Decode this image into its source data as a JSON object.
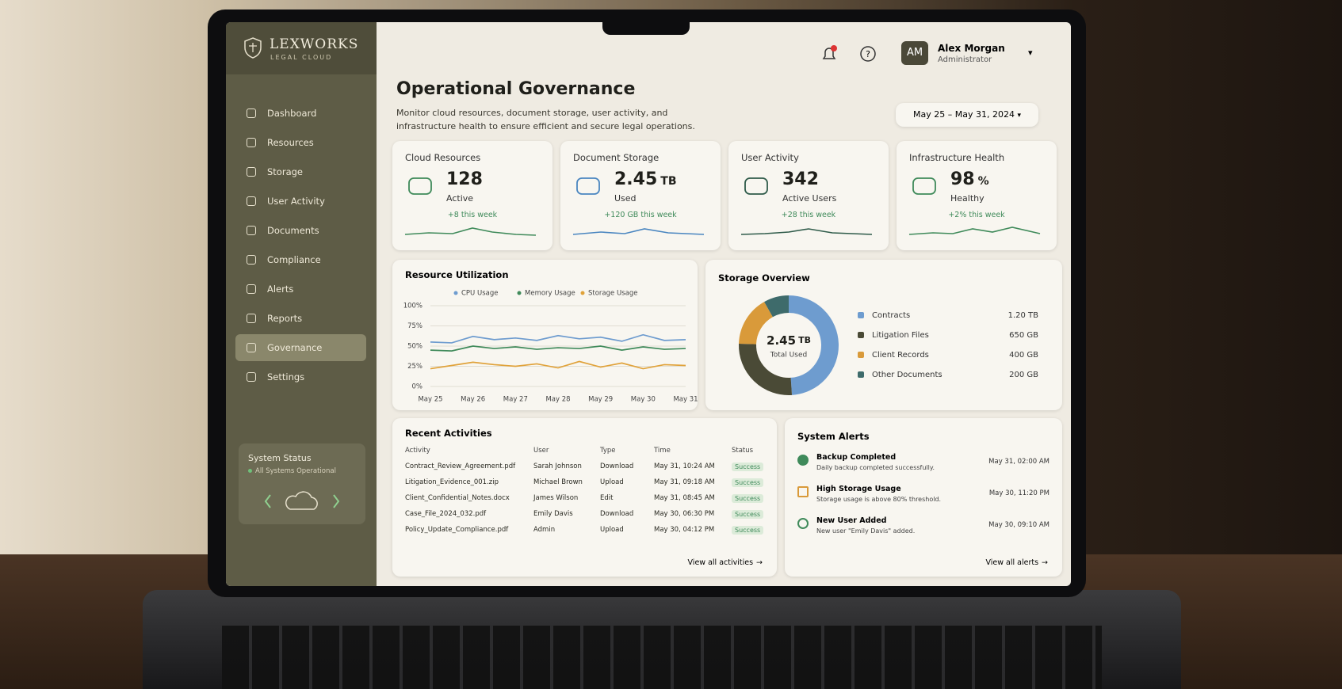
{
  "brand": {
    "name": "LEXWORKS",
    "tagline": "LEGAL CLOUD"
  },
  "nav": {
    "items": [
      "Dashboard",
      "Resources",
      "Storage",
      "User Activity",
      "Documents",
      "Compliance",
      "Alerts",
      "Reports",
      "Governance",
      "Settings"
    ],
    "active_index": 8
  },
  "system_status": {
    "title": "System Status",
    "status": "All Systems Operational"
  },
  "user": {
    "initials": "AM",
    "name": "Alex Morgan",
    "role": "Administrator"
  },
  "header": {
    "title": "Operational Governance",
    "subtitle": "Monitor cloud resources, document storage, user activity, and infrastructure health to ensure efficient and secure legal operations.",
    "date_range": "May 25 – May 31, 2024"
  },
  "kpis": [
    {
      "title": "Cloud Resources",
      "value": "128",
      "label": "Active",
      "change": "+8 this week"
    },
    {
      "title": "Document Storage",
      "value": "2.45",
      "unit": "TB",
      "label": "Used",
      "change": "+120 GB this week"
    },
    {
      "title": "User Activity",
      "value": "342",
      "label": "Active Users",
      "change": "+28 this week"
    },
    {
      "title": "Infrastructure Health",
      "value": "98",
      "unit": "%",
      "label": "Healthy",
      "change": "+2% this week"
    }
  ],
  "resource_utilization": {
    "type": "line",
    "title": "Resource Utilization",
    "categories": [
      "May 25",
      null,
      "May 26",
      null,
      "May 27",
      null,
      "May 28",
      null,
      "May 29",
      null,
      "May 30",
      null,
      "May 31"
    ],
    "series": [
      {
        "name": "CPU Usage",
        "color": "#6e9ccf",
        "values": [
          55,
          54,
          62,
          58,
          60,
          57,
          63,
          59,
          61,
          56,
          64,
          57,
          58
        ]
      },
      {
        "name": "Memory Usage",
        "color": "#3f8a5a",
        "values": [
          45,
          44,
          50,
          47,
          49,
          46,
          48,
          47,
          50,
          45,
          49,
          46,
          47
        ]
      },
      {
        "name": "Storage Usage",
        "color": "#e0a23a",
        "values": [
          22,
          26,
          30,
          27,
          25,
          28,
          23,
          31,
          24,
          29,
          22,
          27,
          26
        ]
      }
    ],
    "ylim": [
      0,
      100
    ],
    "yticks": [
      {
        "value": 0,
        "label": "0%"
      },
      {
        "value": 25,
        "label": "25%"
      },
      {
        "value": 50,
        "label": "50%"
      },
      {
        "value": 75,
        "label": "75%"
      },
      {
        "value": 100,
        "label": "100%"
      }
    ],
    "grid": true
  },
  "storage_overview": {
    "type": "donut",
    "title": "Storage Overview",
    "center_value": "2.45",
    "center_unit": "TB",
    "center_label": "Total Used",
    "categories": [
      "Contracts",
      "Litigation Files",
      "Client Records",
      "Other Documents"
    ],
    "values": [
      1200,
      650,
      400,
      200
    ],
    "value_labels": [
      "1.20 TB",
      "650 GB",
      "400 GB",
      "200 GB"
    ],
    "colors": [
      "#6e9ccf",
      "#4a4a36",
      "#d99a3a",
      "#3e6b6b"
    ]
  },
  "recent_activities": {
    "title": "Recent Activities",
    "columns": [
      "Activity",
      "User",
      "Type",
      "Time",
      "Status"
    ],
    "rows": [
      [
        "Contract_Review_Agreement.pdf",
        "Sarah Johnson",
        "Download",
        "May 31, 10:24 AM",
        "Success"
      ],
      [
        "Litigation_Evidence_001.zip",
        "Michael Brown",
        "Upload",
        "May 31, 09:18 AM",
        "Success"
      ],
      [
        "Client_Confidential_Notes.docx",
        "James Wilson",
        "Edit",
        "May 31, 08:45 AM",
        "Success"
      ],
      [
        "Case_File_2024_032.pdf",
        "Emily Davis",
        "Download",
        "May 30, 06:30 PM",
        "Success"
      ],
      [
        "Policy_Update_Compliance.pdf",
        "Admin",
        "Upload",
        "May 30, 04:12 PM",
        "Success"
      ]
    ],
    "link": "View all activities"
  },
  "system_alerts": {
    "title": "System Alerts",
    "items": [
      {
        "title": "Backup Completed",
        "description": "Daily backup completed successfully.",
        "time": "May 31, 02:00 AM",
        "status": "success"
      },
      {
        "title": "High Storage Usage",
        "description": "Storage usage is above 80% threshold.",
        "time": "May 30, 11:20 PM",
        "status": "warning"
      },
      {
        "title": "New User Added",
        "description": "New user \"Emily Davis\" added.",
        "time": "May 30, 09:10 AM",
        "status": "info"
      }
    ],
    "link": "View all alerts"
  }
}
